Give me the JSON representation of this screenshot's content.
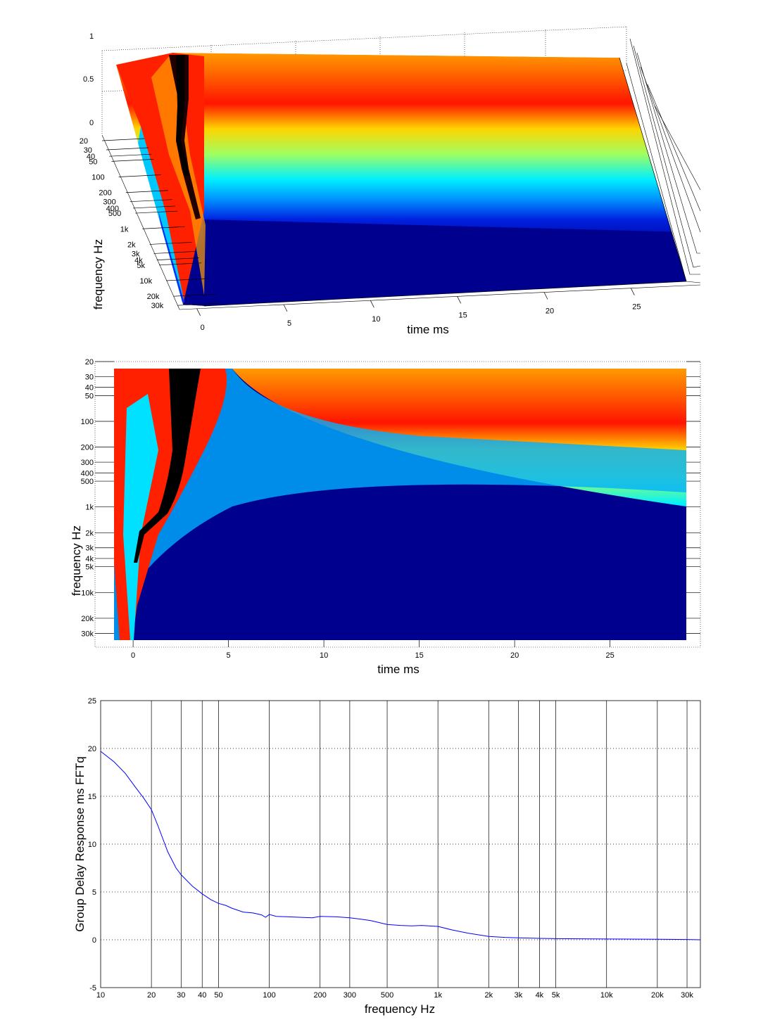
{
  "chart_data": [
    {
      "type": "surface",
      "view": "3d-waterfall",
      "colormap": "jet",
      "xlabel": "time   ms",
      "ylabel": "frequency   Hz",
      "zlim": [
        0,
        1
      ],
      "xlim": [
        -1,
        29
      ],
      "x_ticks": [
        "0",
        "5",
        "10",
        "15",
        "20",
        "25"
      ],
      "y_ticks": [
        "20",
        "30",
        "40",
        "50",
        "100",
        "200",
        "300",
        "400",
        "500",
        "1k",
        "2k",
        "3k",
        "4k",
        "5k",
        "10k",
        "20k",
        "30k"
      ],
      "z_ticks": [
        "0",
        "0.5",
        "1"
      ],
      "ridge_peak_ms": [
        {
          "freq_hz": 30,
          "t_ms": 2.8
        },
        {
          "freq_hz": 200,
          "t_ms": 2.2
        },
        {
          "freq_hz": 1000,
          "t_ms": 1.7
        },
        {
          "freq_hz": 2000,
          "t_ms": 0.5
        },
        {
          "freq_hz": 10000,
          "t_ms": 0.1
        },
        {
          "freq_hz": 30000,
          "t_ms": 0.0
        }
      ]
    },
    {
      "type": "heatmap",
      "view": "top",
      "colormap": "jet",
      "xlabel": "time   ms",
      "ylabel": "frequency   Hz",
      "xlim": [
        -1,
        29
      ],
      "ylim_hz": [
        20,
        36000
      ],
      "x_ticks": [
        "0",
        "5",
        "10",
        "15",
        "20",
        "25"
      ],
      "y_ticks": [
        "20",
        "30",
        "40",
        "50",
        "100",
        "200",
        "300",
        "400",
        "500",
        "1k",
        "2k",
        "3k",
        "4k",
        "5k",
        "10k",
        "20k",
        "30k"
      ],
      "grid": "dotted"
    },
    {
      "type": "line",
      "xlabel": "frequency   Hz",
      "ylabel": "Group Delay Response ms    FFTq",
      "xscale": "log",
      "xlim": [
        10,
        36000
      ],
      "ylim": [
        -5,
        25
      ],
      "grid": true,
      "x_ticks": [
        "10",
        "20",
        "30",
        "40",
        "50",
        "100",
        "200",
        "300",
        "500",
        "1k",
        "2k",
        "3k",
        "4k",
        "5k",
        "10k",
        "20k",
        "30k"
      ],
      "y_ticks": [
        "-5",
        "0",
        "5",
        "10",
        "15",
        "20",
        "25"
      ],
      "series": [
        {
          "color": "#0000ff",
          "x": [
            10,
            12,
            14,
            16,
            18,
            20,
            22,
            25,
            28,
            30,
            35,
            40,
            45,
            50,
            55,
            60,
            70,
            80,
            90,
            95,
            100,
            110,
            130,
            150,
            180,
            200,
            250,
            300,
            350,
            400,
            500,
            600,
            700,
            800,
            1000,
            1200,
            1500,
            2000,
            2500,
            3000,
            4000,
            5000,
            7000,
            10000,
            20000,
            30000,
            36000
          ],
          "y": [
            19.7,
            18.6,
            17.4,
            16.0,
            14.8,
            13.6,
            11.8,
            9.2,
            7.5,
            6.8,
            5.6,
            4.8,
            4.2,
            3.8,
            3.6,
            3.3,
            2.9,
            2.8,
            2.6,
            2.35,
            2.65,
            2.45,
            2.4,
            2.35,
            2.3,
            2.45,
            2.4,
            2.3,
            2.15,
            2.0,
            1.6,
            1.5,
            1.45,
            1.5,
            1.4,
            1.05,
            0.7,
            0.35,
            0.25,
            0.2,
            0.15,
            0.12,
            0.1,
            0.08,
            0.05,
            0.03,
            0.0
          ]
        }
      ]
    }
  ]
}
